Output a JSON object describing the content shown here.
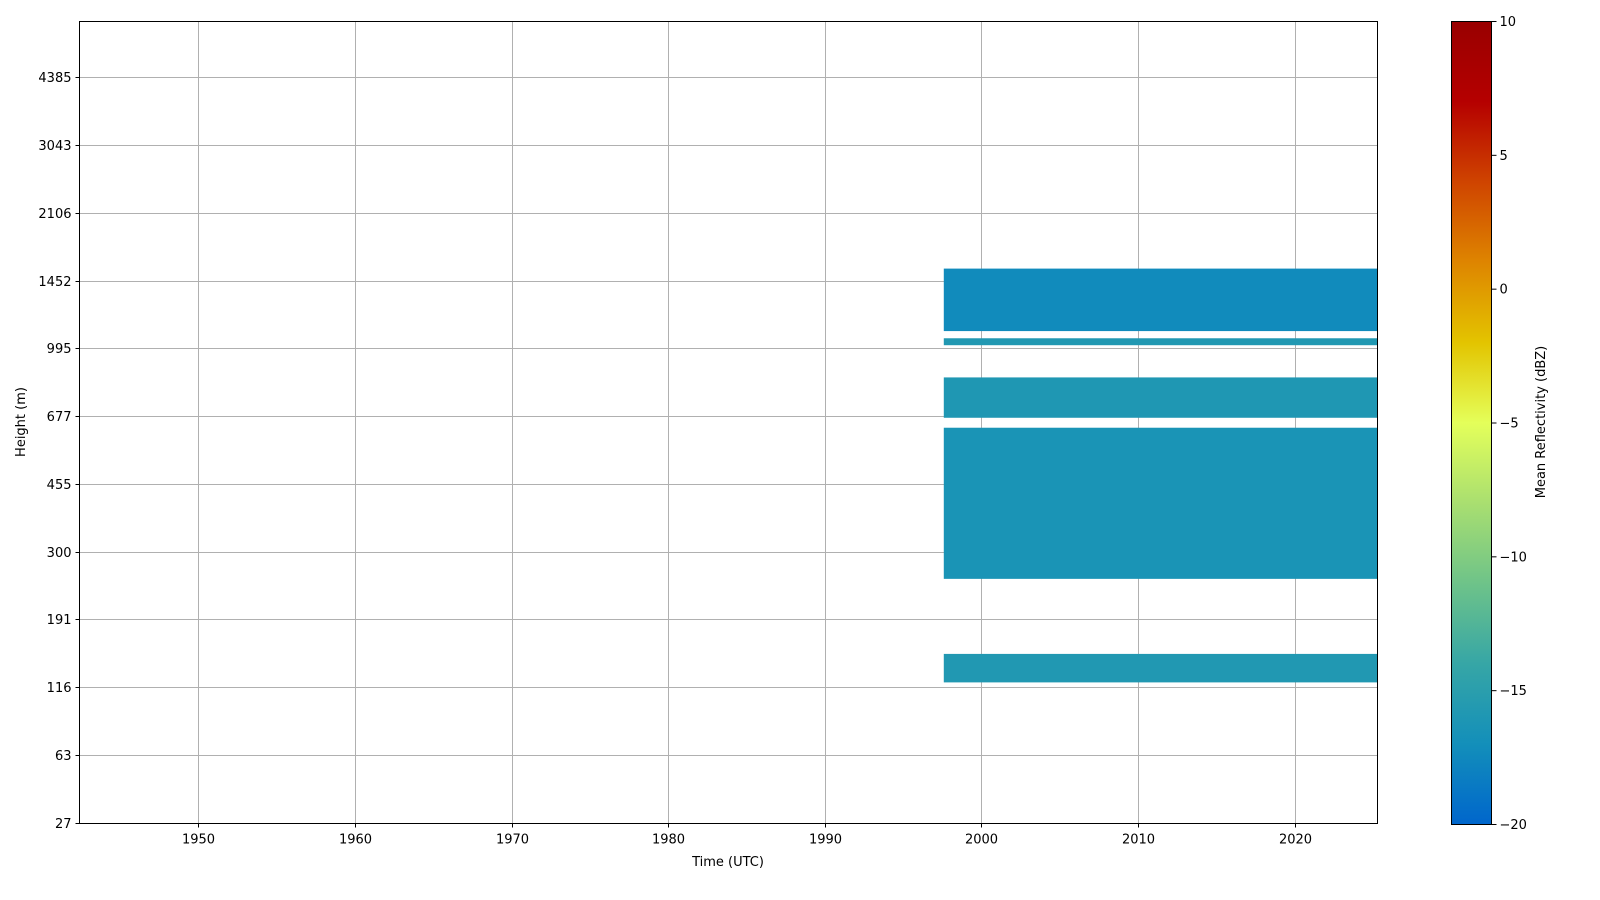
{
  "chart_data": {
    "type": "heatmap",
    "title": "",
    "xlabel": "Time (UTC)",
    "ylabel": "Height (m)",
    "xlim": [
      1942.4,
      2025.3
    ],
    "x_ticks": [
      1950,
      1960,
      1970,
      1980,
      1990,
      2000,
      2010,
      2020
    ],
    "y_scale": "categorical-height-levels",
    "y_ticks": [
      "27",
      "63",
      "116",
      "191",
      "300",
      "455",
      "677",
      "995",
      "1452",
      "2106",
      "3043",
      "4385"
    ],
    "grid": true,
    "colorbar": {
      "label": "Mean Reflectivity (dBZ)",
      "range": [
        -20,
        10
      ],
      "ticks": [
        10,
        5,
        0,
        -5,
        -10,
        -15,
        -20
      ],
      "tick_labels": [
        "10",
        "5",
        "0",
        "−5",
        "−10",
        "−15",
        "−20"
      ],
      "placement": "right",
      "colormap": [
        "#0066cc",
        "#138fba",
        "#36a6a6",
        "#6ec389",
        "#a9df70",
        "#e4ff5a",
        "#e3c400",
        "#de8500",
        "#cf4400",
        "#b50000",
        "#990000"
      ]
    },
    "bands": [
      {
        "x_start": 1997.6,
        "x_end": 2025.3,
        "y_bottom": 1095,
        "y_top": 1550,
        "value": -17.3
      },
      {
        "x_start": 1997.6,
        "x_end": 2025.3,
        "y_bottom": 1012,
        "y_top": 1052,
        "value": -15.8
      },
      {
        "x_start": 1997.6,
        "x_end": 2025.3,
        "y_bottom": 670,
        "y_top": 843,
        "value": -16.0
      },
      {
        "x_start": 1997.6,
        "x_end": 2025.3,
        "y_bottom": 250,
        "y_top": 632,
        "value": -16.4
      },
      {
        "x_start": 1997.6,
        "x_end": 2025.3,
        "y_bottom": 120,
        "y_top": 148,
        "value": -15.8
      }
    ]
  }
}
